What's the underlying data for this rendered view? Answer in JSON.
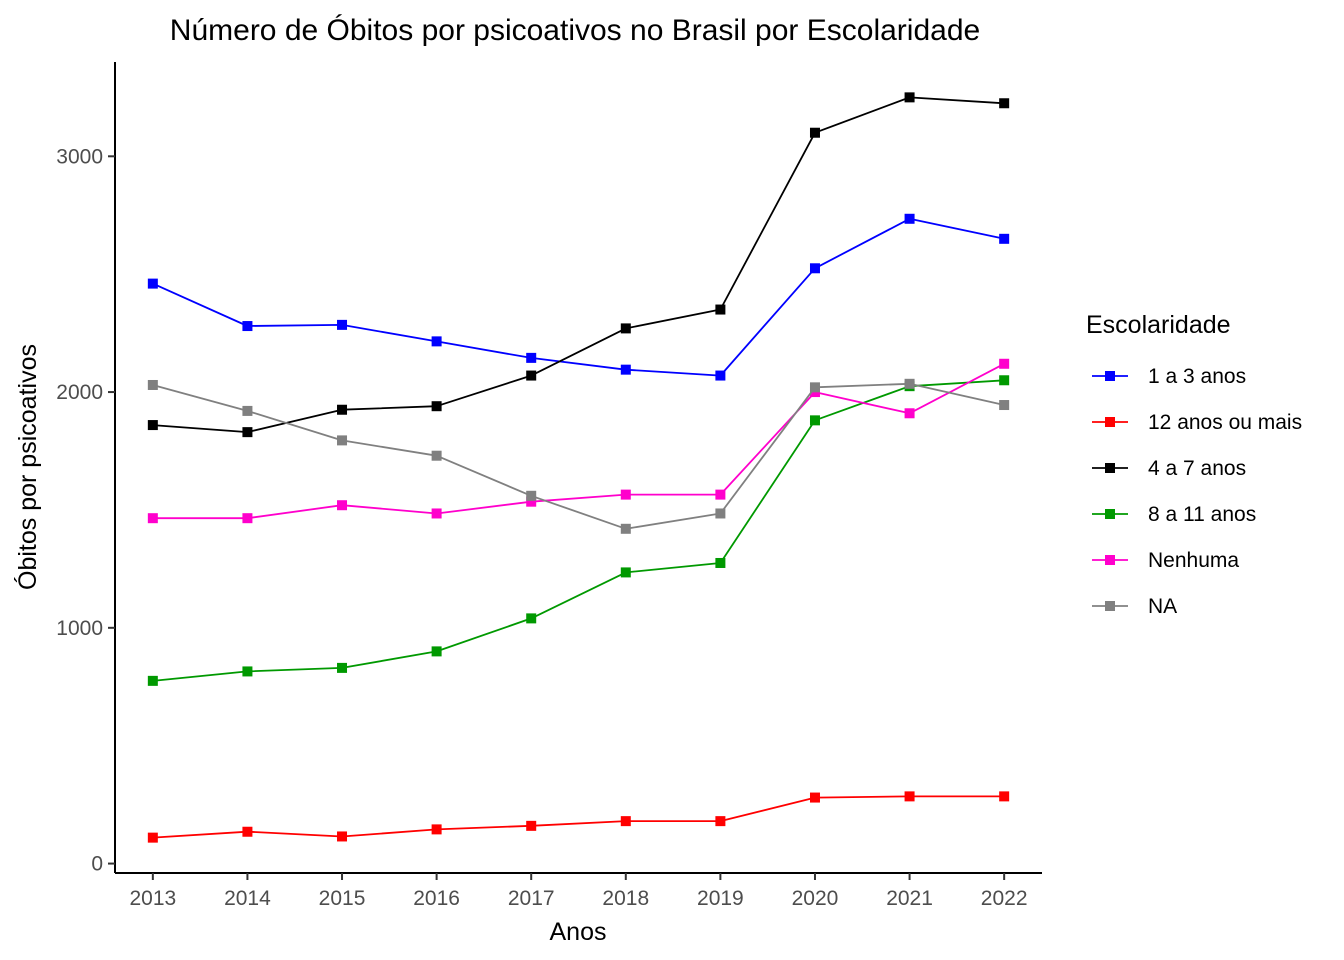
{
  "chart_data": {
    "type": "line",
    "title": "Número de Óbitos por psicoativos no Brasil por Escolaridade",
    "xlabel": "Anos",
    "ylabel": "Óbitos por psicoativos",
    "x": [
      2013,
      2014,
      2015,
      2016,
      2017,
      2018,
      2019,
      2020,
      2021,
      2022
    ],
    "xlim": [
      2012.6,
      2022.4
    ],
    "ylim": [
      -40,
      3400
    ],
    "yticks": [
      0,
      1000,
      2000,
      3000
    ],
    "grid": false,
    "legend": {
      "title": "Escolaridade",
      "placement": "right"
    },
    "series": [
      {
        "name": "1 a 3 anos",
        "color": "#0000ff",
        "values": [
          2460,
          2280,
          2285,
          2215,
          2145,
          2095,
          2070,
          2525,
          2735,
          2650
        ]
      },
      {
        "name": "12 anos ou mais",
        "color": "#ff0000",
        "values": [
          110,
          135,
          115,
          145,
          160,
          180,
          180,
          280,
          285,
          285
        ]
      },
      {
        "name": "4 a 7 anos",
        "color": "#000000",
        "values": [
          1860,
          1830,
          1925,
          1940,
          2070,
          2270,
          2350,
          3100,
          3250,
          3225
        ]
      },
      {
        "name": "8 a 11 anos",
        "color": "#009900",
        "values": [
          775,
          815,
          830,
          900,
          1040,
          1235,
          1275,
          1880,
          2025,
          2050
        ]
      },
      {
        "name": "Nenhuma",
        "color": "#ff00cc",
        "values": [
          1465,
          1465,
          1520,
          1485,
          1535,
          1565,
          1565,
          2000,
          1910,
          2120
        ]
      },
      {
        "name": "NA",
        "color": "#808080",
        "values": [
          2030,
          1920,
          1795,
          1730,
          1560,
          1420,
          1485,
          2020,
          2035,
          1945
        ]
      }
    ]
  }
}
